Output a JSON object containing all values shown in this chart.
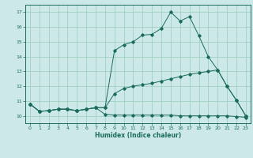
{
  "bg_color": "#cce8e8",
  "line_color": "#1a6b5a",
  "grid_color": "#99ccbb",
  "xlabel": "Humidex (Indice chaleur)",
  "xlim": [
    -0.5,
    23.5
  ],
  "ylim": [
    9.5,
    17.5
  ],
  "yticks": [
    10,
    11,
    12,
    13,
    14,
    15,
    16,
    17
  ],
  "xticks": [
    0,
    1,
    2,
    3,
    4,
    5,
    6,
    7,
    8,
    9,
    10,
    11,
    12,
    13,
    14,
    15,
    16,
    17,
    18,
    19,
    20,
    21,
    22,
    23
  ],
  "curve1_x": [
    0,
    1,
    2,
    3,
    4,
    5,
    6,
    7,
    8,
    9,
    10,
    11,
    12,
    13,
    14,
    15,
    16,
    17,
    18,
    19,
    20,
    21,
    22,
    23
  ],
  "curve1_y": [
    10.8,
    10.3,
    10.35,
    10.45,
    10.45,
    10.35,
    10.45,
    10.55,
    10.1,
    10.05,
    10.05,
    10.05,
    10.05,
    10.05,
    10.05,
    10.05,
    10.0,
    10.0,
    10.0,
    10.0,
    10.0,
    10.0,
    9.95,
    9.9
  ],
  "curve2_x": [
    0,
    1,
    2,
    3,
    4,
    5,
    6,
    7,
    8,
    9,
    10,
    11,
    12,
    13,
    14,
    15,
    16,
    17,
    18,
    19,
    20,
    21,
    22,
    23
  ],
  "curve2_y": [
    10.8,
    10.3,
    10.35,
    10.45,
    10.45,
    10.35,
    10.45,
    10.55,
    10.55,
    11.5,
    11.85,
    12.0,
    12.1,
    12.2,
    12.35,
    12.5,
    12.65,
    12.8,
    12.9,
    13.0,
    13.1,
    12.0,
    11.05,
    10.0
  ],
  "curve3_x": [
    0,
    1,
    2,
    3,
    4,
    5,
    6,
    7,
    8,
    9,
    10,
    11,
    12,
    13,
    14,
    15,
    16,
    17,
    18,
    19,
    20,
    21,
    22,
    23
  ],
  "curve3_y": [
    10.8,
    10.3,
    10.35,
    10.45,
    10.45,
    10.35,
    10.45,
    10.55,
    10.55,
    14.4,
    14.8,
    15.0,
    15.45,
    15.5,
    15.9,
    17.0,
    16.4,
    16.7,
    15.4,
    14.0,
    13.1,
    12.0,
    11.05,
    10.0
  ],
  "title_fontsize": 5,
  "tick_fontsize": 4.5,
  "xlabel_fontsize": 5.5
}
